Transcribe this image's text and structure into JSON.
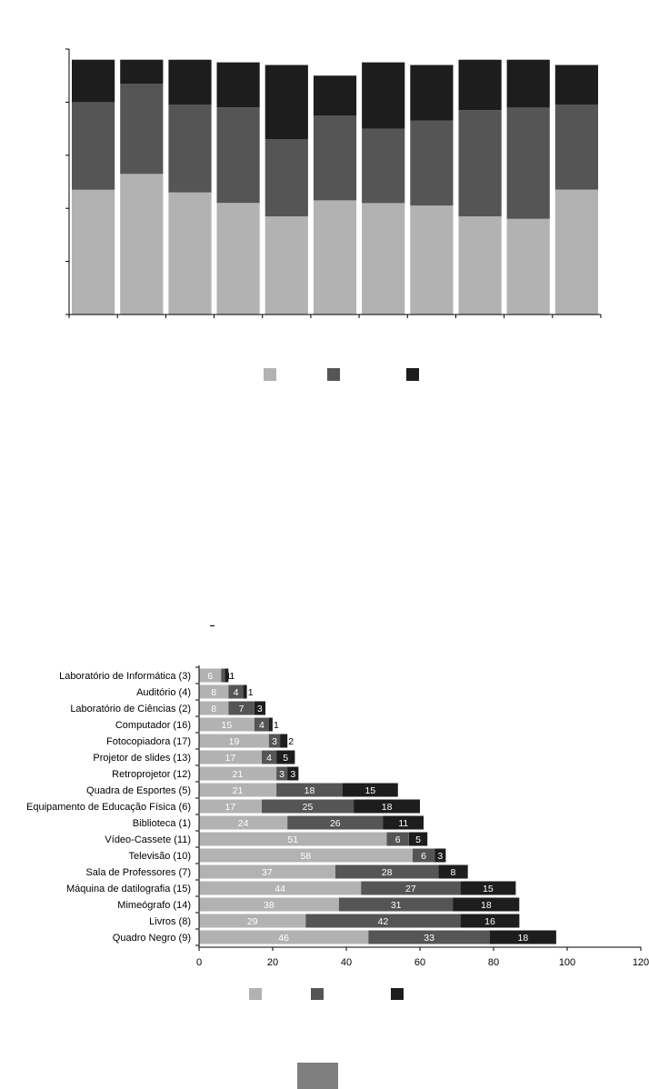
{
  "colors": {
    "light": "#b2b2b2",
    "mid": "#555555",
    "dark": "#1d1d1d",
    "axis": "#000000",
    "swatch": "#7f7f7f"
  },
  "chart_data": [
    {
      "type": "bar",
      "stacked": true,
      "percent": true,
      "categories": [
        "",
        "",
        "",
        "",
        "",
        "",
        "",
        "",
        "",
        "",
        ""
      ],
      "series": [
        {
          "values": [
            47,
            53,
            46,
            42,
            37,
            43,
            42,
            41,
            37,
            36,
            47
          ]
        },
        {
          "values": [
            33,
            34,
            33,
            36,
            29,
            32,
            28,
            32,
            40,
            42,
            32
          ]
        },
        {
          "values": [
            16,
            9,
            17,
            17,
            28,
            15,
            25,
            21,
            19,
            18,
            15
          ]
        }
      ],
      "ylim": [
        0,
        100
      ],
      "grid": false,
      "legend": "bottom-center"
    },
    {
      "type": "bar",
      "orientation": "horizontal",
      "stacked": true,
      "categories": [
        "Laboratório de Informática (3)",
        "Auditório (4)",
        "Laboratório de Ciências (2)",
        "Computador (16)",
        "Fotocopiadora (17)",
        "Projetor de slides (13)",
        "Retroprojetor (12)",
        "Quadra de Esportes (5)",
        "Equipamento de Educação Física (6)",
        "Biblioteca (1)",
        "Vídeo-Cassete (11)",
        "Televisão (10)",
        "Sala de Professores (7)",
        "Máquina de datilografia (15)",
        "Mimeógrafo (14)",
        "Livros (8)",
        "Quadro Negro (9)"
      ],
      "series": [
        {
          "values": [
            6,
            8,
            8,
            15,
            19,
            17,
            21,
            21,
            17,
            24,
            51,
            58,
            37,
            44,
            38,
            29,
            46
          ]
        },
        {
          "values": [
            1,
            4,
            7,
            4,
            3,
            4,
            3,
            18,
            25,
            26,
            6,
            6,
            28,
            27,
            31,
            42,
            33
          ]
        },
        {
          "values": [
            1,
            1,
            3,
            1,
            2,
            5,
            3,
            15,
            18,
            11,
            5,
            3,
            8,
            15,
            18,
            16,
            18
          ]
        }
      ],
      "value_labels": [
        [
          "6",
          "1",
          "1"
        ],
        [
          "8",
          "4",
          "1"
        ],
        [
          "8",
          "7",
          "3"
        ],
        [
          "15",
          "4",
          "1"
        ],
        [
          "19",
          "3",
          "2"
        ],
        [
          "17",
          "4",
          "5"
        ],
        [
          "21",
          "3",
          "3"
        ],
        [
          "21",
          "18",
          "15"
        ],
        [
          "17",
          "25",
          "18"
        ],
        [
          "24",
          "26",
          "11"
        ],
        [
          "51",
          "6",
          "5"
        ],
        [
          "58",
          "6",
          "3"
        ],
        [
          "37",
          "28",
          "8"
        ],
        [
          "44",
          "27",
          "15"
        ],
        [
          "38",
          "31",
          "18"
        ],
        [
          "29",
          "42",
          "16"
        ],
        [
          "46",
          "33",
          "18"
        ]
      ],
      "xticks": [
        "0",
        "20",
        "40",
        "60",
        "80",
        "100",
        "120"
      ],
      "xlim": [
        0,
        120
      ],
      "grid": false,
      "legend": "bottom-center"
    }
  ]
}
